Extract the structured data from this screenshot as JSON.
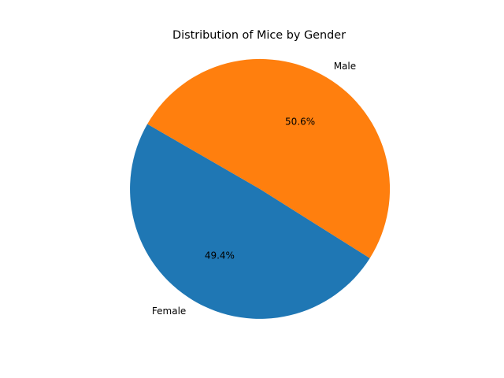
{
  "chart_data": {
    "type": "pie",
    "title": "Distribution of Mice by Gender",
    "categories": [
      "Female",
      "Male"
    ],
    "values": [
      49.4,
      50.6
    ],
    "value_labels": [
      "49.4%",
      "50.6%"
    ],
    "colors": [
      "#1f77b4",
      "#ff7f0e"
    ],
    "start_angle_deg": 150,
    "direction": "counterclockwise",
    "legend": "none"
  }
}
